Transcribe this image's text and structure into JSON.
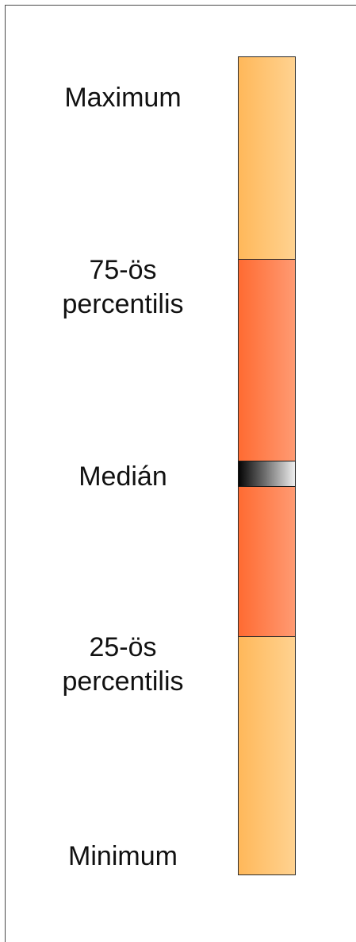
{
  "labels": {
    "maximum": "Maximum",
    "p75_line1": "75-ös",
    "p75_line2": "percentilis",
    "median": "Medián",
    "p25_line1": "25-ös",
    "p25_line2": "percentilis",
    "minimum": "Minimum"
  },
  "colors": {
    "whisker": "#ffc46e",
    "box": "#ff7a45",
    "median_marker": "#000000",
    "outline": "#2a2a2a"
  }
}
